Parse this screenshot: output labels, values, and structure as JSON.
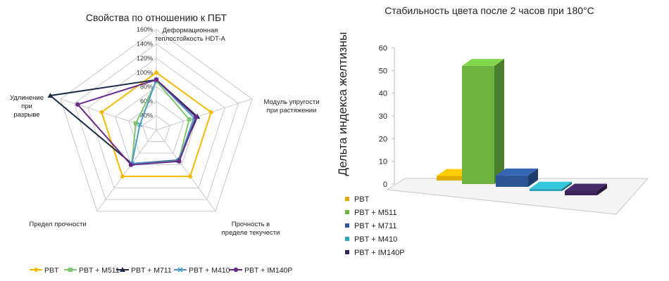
{
  "chart_data": [
    {
      "type": "radar",
      "title": "Свойства по отношению к ПБТ",
      "axes": [
        "Деформационная теплостойкость HDT-A",
        "Модуль упругости при растяжении",
        "Прочность в пределе текучести",
        "Предел прочности",
        "Удлинение при разрыве"
      ],
      "axis_label_lines": [
        [
          "Деформационная",
          "теплостойкость HDT-A"
        ],
        [
          "Модуль упругости",
          "при растяжении"
        ],
        [
          "Прочность в",
          "пределе текучести"
        ],
        [
          "Предел прочности"
        ],
        [
          "Удлинение",
          "при",
          "разрыве"
        ]
      ],
      "tick_labels": [
        "40%",
        "60%",
        "80%",
        "100%",
        "120%",
        "140%",
        "160%"
      ],
      "rmin": 20,
      "rmax": 160,
      "series": [
        {
          "name": "PBT",
          "color": "#f5b800",
          "marker": "diamond",
          "values": [
            100,
            100,
            100,
            100,
            100
          ]
        },
        {
          "name": "PBT + M511",
          "color": "#7fc46e",
          "marker": "square",
          "values": [
            88,
            68,
            73,
            78,
            50
          ]
        },
        {
          "name": "PBT + M711",
          "color": "#1c2d4a",
          "marker": "triangle",
          "values": [
            90,
            80,
            72,
            78,
            175
          ]
        },
        {
          "name": "PBT + M410",
          "color": "#4a9cc7",
          "marker": "x",
          "values": [
            90,
            75,
            73,
            78,
            44
          ]
        },
        {
          "name": "PBT + IM140P",
          "color": "#6b2a8a",
          "marker": "circle",
          "values": [
            90,
            78,
            74,
            80,
            135
          ]
        }
      ]
    },
    {
      "type": "bar",
      "title": "Стабильность цвета после 2 часов при 180°C",
      "ylabel": "Дельта индекса желтизны",
      "ylim": [
        0,
        60
      ],
      "yticks": [
        0,
        10,
        20,
        30,
        40,
        50,
        60
      ],
      "categories": [
        "PBT",
        "PBT + M511",
        "PBT + M711",
        "PBT + M410",
        "PBT + IM140P"
      ],
      "values": [
        2,
        52,
        5,
        1,
        2
      ],
      "colors": [
        "#e0ab00",
        "#6db33f",
        "#2c5596",
        "#2aa6b8",
        "#3a2458"
      ]
    }
  ]
}
